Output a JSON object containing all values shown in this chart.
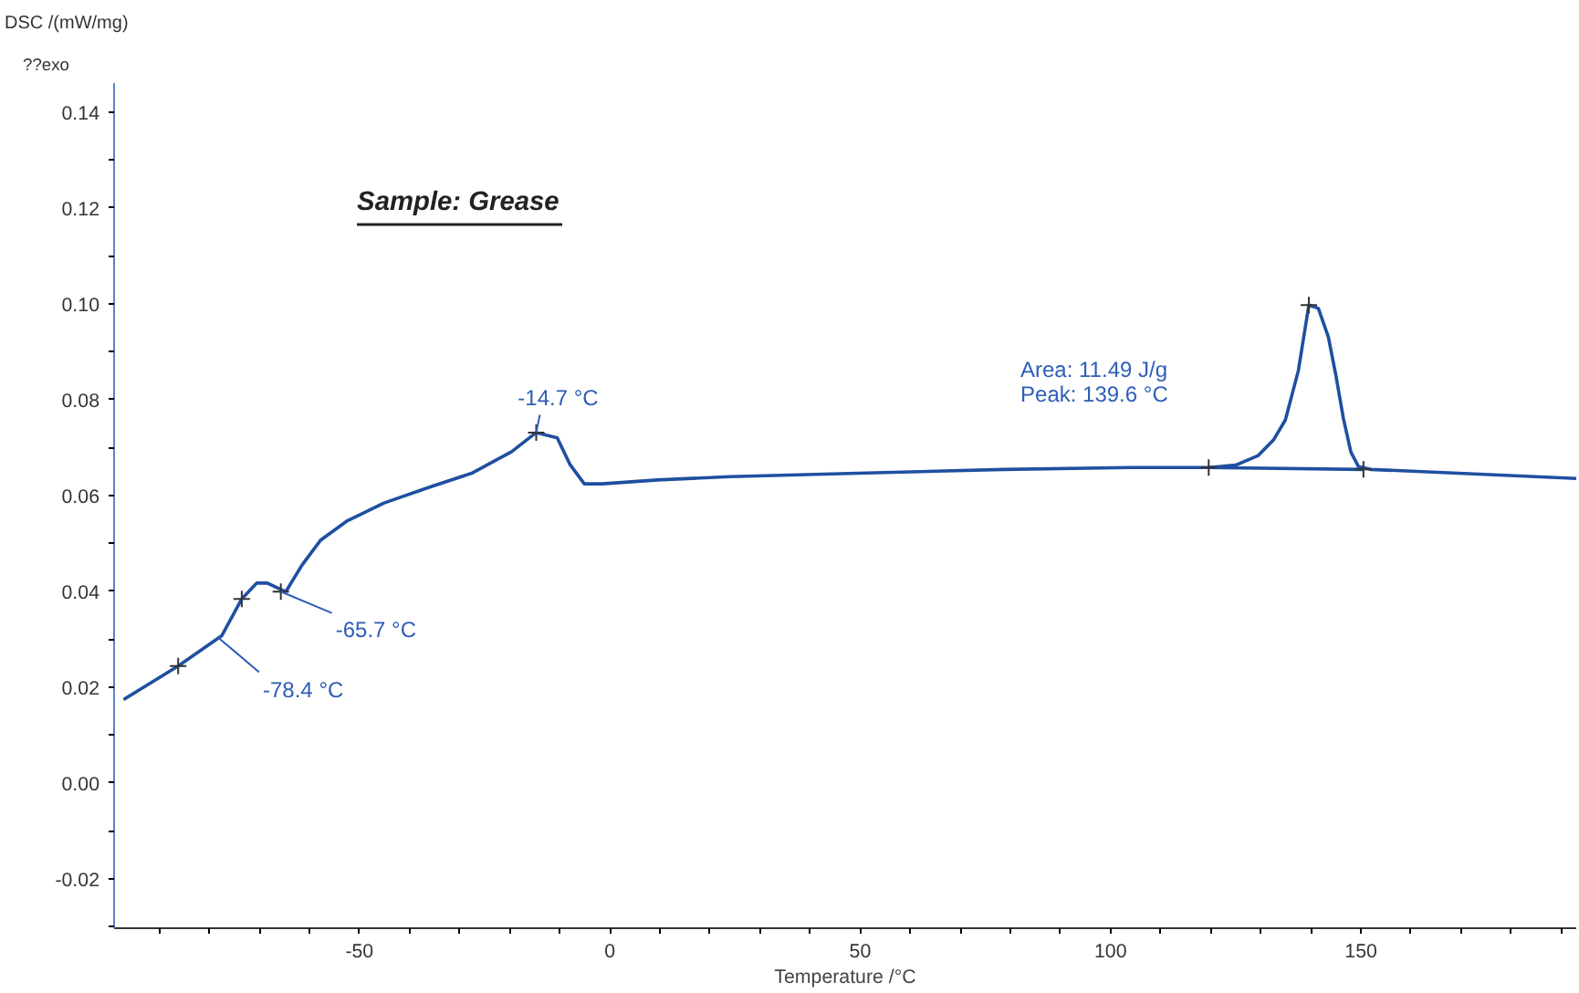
{
  "chart_data": {
    "type": "line",
    "title": "Sample: Grease",
    "xlabel": "Temperature /°C",
    "ylabel": "DSC /(mW/mg)",
    "xlim": [
      -99,
      193
    ],
    "ylim": [
      -0.0303,
      0.146
    ],
    "xticks": [
      {
        "value": -90,
        "label": null
      },
      {
        "value": -80,
        "label": null
      },
      {
        "value": -70,
        "label": null
      },
      {
        "value": -60,
        "label": null
      },
      -50,
      {
        "value": -40,
        "label": null
      },
      {
        "value": -30,
        "label": null
      },
      {
        "value": -20,
        "label": null
      },
      {
        "value": -10,
        "label": null
      },
      0,
      {
        "value": 10,
        "label": null
      },
      {
        "value": 20,
        "label": null
      },
      {
        "value": 30,
        "label": null
      },
      {
        "value": 40,
        "label": null
      },
      50,
      {
        "value": 60,
        "label": null
      },
      {
        "value": 70,
        "label": null
      },
      {
        "value": 80,
        "label": null
      },
      {
        "value": 90,
        "label": null
      },
      100,
      {
        "value": 110,
        "label": null
      },
      {
        "value": 120,
        "label": null
      },
      {
        "value": 130,
        "label": null
      },
      {
        "value": 140,
        "label": null
      },
      150,
      {
        "value": 160,
        "label": null
      },
      {
        "value": 170,
        "label": null
      },
      {
        "value": 180,
        "label": null
      },
      {
        "value": 190,
        "label": null
      }
    ],
    "yticks": [
      {
        "value": -0.03,
        "label": null
      },
      {
        "value": -0.02,
        "label": "-0.02"
      },
      {
        "value": -0.01,
        "label": null
      },
      {
        "value": 0,
        "label": "0.00"
      },
      {
        "value": 0.01,
        "label": null
      },
      {
        "value": 0.02,
        "label": "0.02"
      },
      {
        "value": 0.03,
        "label": null
      },
      {
        "value": 0.04,
        "label": "0.04"
      },
      {
        "value": 0.05,
        "label": null
      },
      {
        "value": 0.06,
        "label": "0.06"
      },
      {
        "value": 0.07,
        "label": null
      },
      {
        "value": 0.08,
        "label": "0.08"
      },
      {
        "value": 0.09,
        "label": null
      },
      {
        "value": 0.1,
        "label": "0.10"
      },
      {
        "value": 0.11,
        "label": null
      },
      {
        "value": 0.12,
        "label": "0.12"
      },
      {
        "value": 0.13,
        "label": null
      },
      {
        "value": 0.14,
        "label": "0.14"
      }
    ],
    "grid": false,
    "series": [
      {
        "color": "#1f4fa0",
        "marker": "none",
        "x": [
          -97.1,
          -86.2,
          -77.5,
          -73.5,
          -70.5,
          -68.4,
          -64.7,
          -61.5,
          -57.8,
          -52.4,
          -45.1,
          -36.0,
          -27.6,
          -19.6,
          -14.7,
          -10.5,
          -8.0,
          -5.1,
          -1.5,
          9.5,
          24,
          49.5,
          78.5,
          104,
          119.6,
          125,
          129.5,
          132.5,
          134.9,
          137.5,
          139.6,
          141.5,
          143.5,
          145,
          146.5,
          148,
          149.5,
          152,
          169.5,
          193
        ],
        "values": [
          0.0174,
          0.0244,
          0.0307,
          0.0384,
          0.0417,
          0.0417,
          0.0399,
          0.0454,
          0.0506,
          0.0547,
          0.0584,
          0.0617,
          0.0646,
          0.0691,
          0.0731,
          0.072,
          0.0665,
          0.0624,
          0.0624,
          0.0632,
          0.0639,
          0.0646,
          0.0654,
          0.0658,
          0.0658,
          0.0663,
          0.0683,
          0.0715,
          0.0757,
          0.086,
          0.0997,
          0.099,
          0.093,
          0.085,
          0.076,
          0.069,
          0.066,
          0.0654,
          0.0646,
          0.0635
        ]
      },
      {
        "color": "#1f4fa0",
        "marker": "none",
        "x": [
          119.6,
          150.5
        ],
        "values": [
          0.0658,
          0.0654
        ]
      },
      {
        "type": "scatter",
        "color": "#333333",
        "marker": "cross",
        "x": [
          -86.2,
          -73.5,
          -65.7,
          -14.7,
          119.6,
          139.6,
          150.5
        ],
        "values": [
          0.0244,
          0.0384,
          0.0399,
          0.0731,
          0.0658,
          0.0997,
          0.0654
        ]
      }
    ],
    "annotations": [
      "??exo",
      {
        "text": "-78.4 °C",
        "x": -78.4,
        "y": 0.0305
      },
      {
        "text": "-65.7 °C",
        "x": -65.7,
        "y": 0.0399
      },
      {
        "text": "-14.7 °C",
        "x": -14.7,
        "y": 0.0731
      },
      "Area:     11.49 J/g",
      "Peak:  139.6 °C"
    ]
  }
}
